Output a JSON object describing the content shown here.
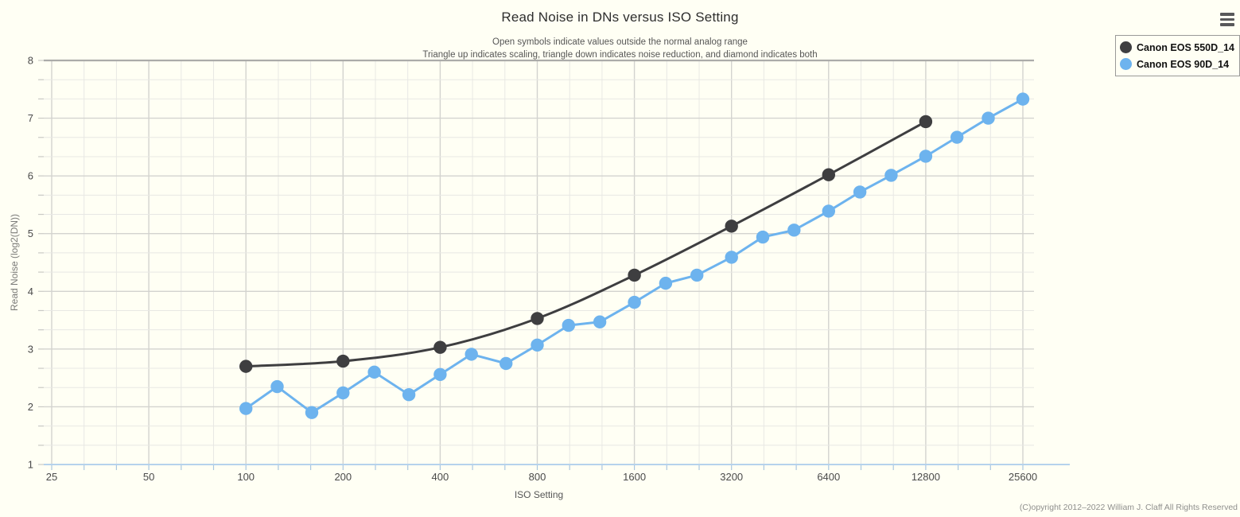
{
  "header": {
    "title": "Read Noise in DNs versus ISO Setting",
    "subtitle_line1": "Open symbols indicate values outside the normal analog range",
    "subtitle_line2": "Triangle up indicates scaling, triangle down indicates noise reduction, and diamond indicates both"
  },
  "legend": {
    "items": [
      {
        "label": "Canon EOS 550D_14",
        "color": "#3e3e40"
      },
      {
        "label": "Canon EOS 90D_14",
        "color": "#6db3ee"
      }
    ]
  },
  "axes": {
    "x_label": "ISO Setting",
    "y_label": "Read Noise (log2(DN))"
  },
  "footer": {
    "copyright": "(C)opyright 2012–2022 William J. Claff All Rights Reserved"
  },
  "colors": {
    "background": "#fffff4",
    "grid_minor": "#e8e8e4",
    "grid_major": "#d3d3cf",
    "plot_border_top": "#ababa9",
    "axis_line_blue": "#b5d2ec",
    "x_tick": "#a9c6e0",
    "y_tick": "#c9c9c5",
    "tick_label": "#4a4a4a",
    "series_550d": "#3e3e40",
    "series_90d": "#6db3ee"
  },
  "chart_data": {
    "type": "line",
    "title": "Read Noise in DNs versus ISO Setting",
    "xlabel": "ISO Setting",
    "ylabel": "Read Noise (log2(DN))",
    "x_scale": "log2",
    "x_base_iso": 25,
    "x_octaves": 10,
    "x_ticks": [
      25,
      50,
      100,
      200,
      400,
      800,
      1600,
      3200,
      6400,
      12800,
      25600
    ],
    "x_minor_divisions_per_octave": 3,
    "ylim": [
      1,
      8
    ],
    "y_ticks": [
      1,
      2,
      3,
      4,
      5,
      6,
      7,
      8
    ],
    "y_minor_step": 0.3333,
    "grid": "on",
    "legend_position": "top-right",
    "series": [
      {
        "name": "Canon EOS 550D_14",
        "color": "#3e3e40",
        "smooth": true,
        "points": [
          [
            100,
            2.7
          ],
          [
            200,
            2.79
          ],
          [
            400,
            3.03
          ],
          [
            800,
            3.53
          ],
          [
            1600,
            4.28
          ],
          [
            3200,
            5.13
          ],
          [
            6400,
            6.02
          ],
          [
            12800,
            6.94
          ]
        ]
      },
      {
        "name": "Canon EOS 90D_14",
        "color": "#6db3ee",
        "smooth": false,
        "points": [
          [
            100,
            1.97
          ],
          [
            125,
            2.35
          ],
          [
            160,
            1.9
          ],
          [
            200,
            2.24
          ],
          [
            250,
            2.6
          ],
          [
            320,
            2.21
          ],
          [
            400,
            2.56
          ],
          [
            500,
            2.91
          ],
          [
            640,
            2.75
          ],
          [
            800,
            3.07
          ],
          [
            1000,
            3.41
          ],
          [
            1250,
            3.47
          ],
          [
            1600,
            3.81
          ],
          [
            2000,
            4.14
          ],
          [
            2500,
            4.28
          ],
          [
            3200,
            4.59
          ],
          [
            4000,
            4.94
          ],
          [
            5000,
            5.06
          ],
          [
            6400,
            5.39
          ],
          [
            8000,
            5.72
          ],
          [
            10000,
            6.01
          ],
          [
            12800,
            6.34
          ],
          [
            16000,
            6.67
          ],
          [
            20000,
            7.0
          ],
          [
            25600,
            7.33
          ]
        ]
      }
    ]
  }
}
